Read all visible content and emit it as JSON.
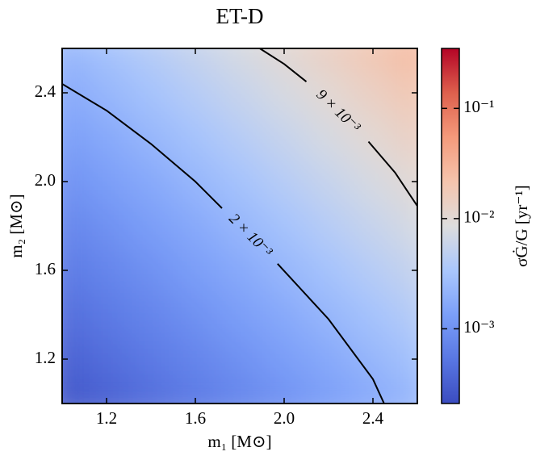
{
  "chart_data": {
    "type": "heatmap",
    "title": "ET-D",
    "x_label": "m₁ [M⊙]",
    "y_label": "m₂ [M⊙]",
    "colorbar_label": "σĠ/G [yr⁻¹]",
    "x": [
      1.0,
      1.2,
      1.4,
      1.6,
      1.8,
      2.0,
      2.2,
      2.4,
      2.6
    ],
    "y": [
      1.0,
      1.2,
      1.4,
      1.6,
      1.8,
      2.0,
      2.2,
      2.4,
      2.6
    ],
    "values": [
      [
        0.00025,
        0.00033,
        0.00043,
        0.00056,
        0.00074,
        0.00098,
        0.0013,
        0.0017,
        0.0023
      ],
      [
        0.00033,
        0.00043,
        0.00056,
        0.00074,
        0.00098,
        0.0013,
        0.0017,
        0.0023,
        0.0031
      ],
      [
        0.00043,
        0.00056,
        0.00074,
        0.00098,
        0.0013,
        0.0017,
        0.0023,
        0.0031,
        0.0042
      ],
      [
        0.00056,
        0.00074,
        0.00098,
        0.0013,
        0.0017,
        0.0023,
        0.0031,
        0.0042,
        0.0056
      ],
      [
        0.00074,
        0.00098,
        0.0013,
        0.0017,
        0.0023,
        0.0031,
        0.0042,
        0.0056,
        0.0076
      ],
      [
        0.00098,
        0.0013,
        0.0017,
        0.0023,
        0.0031,
        0.0042,
        0.0056,
        0.0076,
        0.0104
      ],
      [
        0.0013,
        0.0017,
        0.0023,
        0.0031,
        0.0042,
        0.0056,
        0.0076,
        0.0104,
        0.0142
      ],
      [
        0.0017,
        0.0023,
        0.0031,
        0.0042,
        0.0056,
        0.0076,
        0.0104,
        0.0142,
        0.0195
      ],
      [
        0.0023,
        0.0031,
        0.0042,
        0.0056,
        0.0076,
        0.0104,
        0.0142,
        0.0195,
        0.0269
      ]
    ],
    "colors": [
      "#3b4cc0",
      "#5977e3",
      "#7b9ff9",
      "#aac7fd",
      "#dddddd",
      "#f5c4ad",
      "#f49a7b",
      "#de604d",
      "#b40426"
    ],
    "clim": [
      0.00021,
      0.35
    ],
    "colorbar_log": true,
    "colorbar_ticks": [
      {
        "value": 0.001,
        "label": "10⁻³"
      },
      {
        "value": 0.01,
        "label": "10⁻²"
      },
      {
        "value": 0.1,
        "label": "10⁻¹"
      }
    ],
    "contours": [
      {
        "level": 0.002,
        "label": "2 × 10⁻³",
        "x": [
          1.0,
          1.2,
          1.4,
          1.6,
          1.72,
          null,
          1.97,
          2.2,
          2.4,
          2.45
        ],
        "y": [
          2.44,
          2.32,
          2.17,
          2.0,
          1.88,
          null,
          1.63,
          1.38,
          1.11,
          1.0
        ]
      },
      {
        "level": 0.009,
        "label": "9 × 10⁻³",
        "x": [
          1.89,
          2.0,
          2.1,
          null,
          2.38,
          2.5,
          2.6
        ],
        "y": [
          2.6,
          2.53,
          2.45,
          null,
          2.18,
          2.04,
          1.89
        ]
      }
    ],
    "contour_color": "#000000",
    "xlim": [
      1.0,
      2.6
    ],
    "ylim": [
      1.0,
      2.6
    ],
    "xticks": [
      1.2,
      1.6,
      {
        "value": 2,
        "label": "2.0"
      },
      2.4
    ],
    "yticks": [
      1.2,
      1.6,
      {
        "value": 2,
        "label": "2.0"
      },
      2.4
    ]
  }
}
